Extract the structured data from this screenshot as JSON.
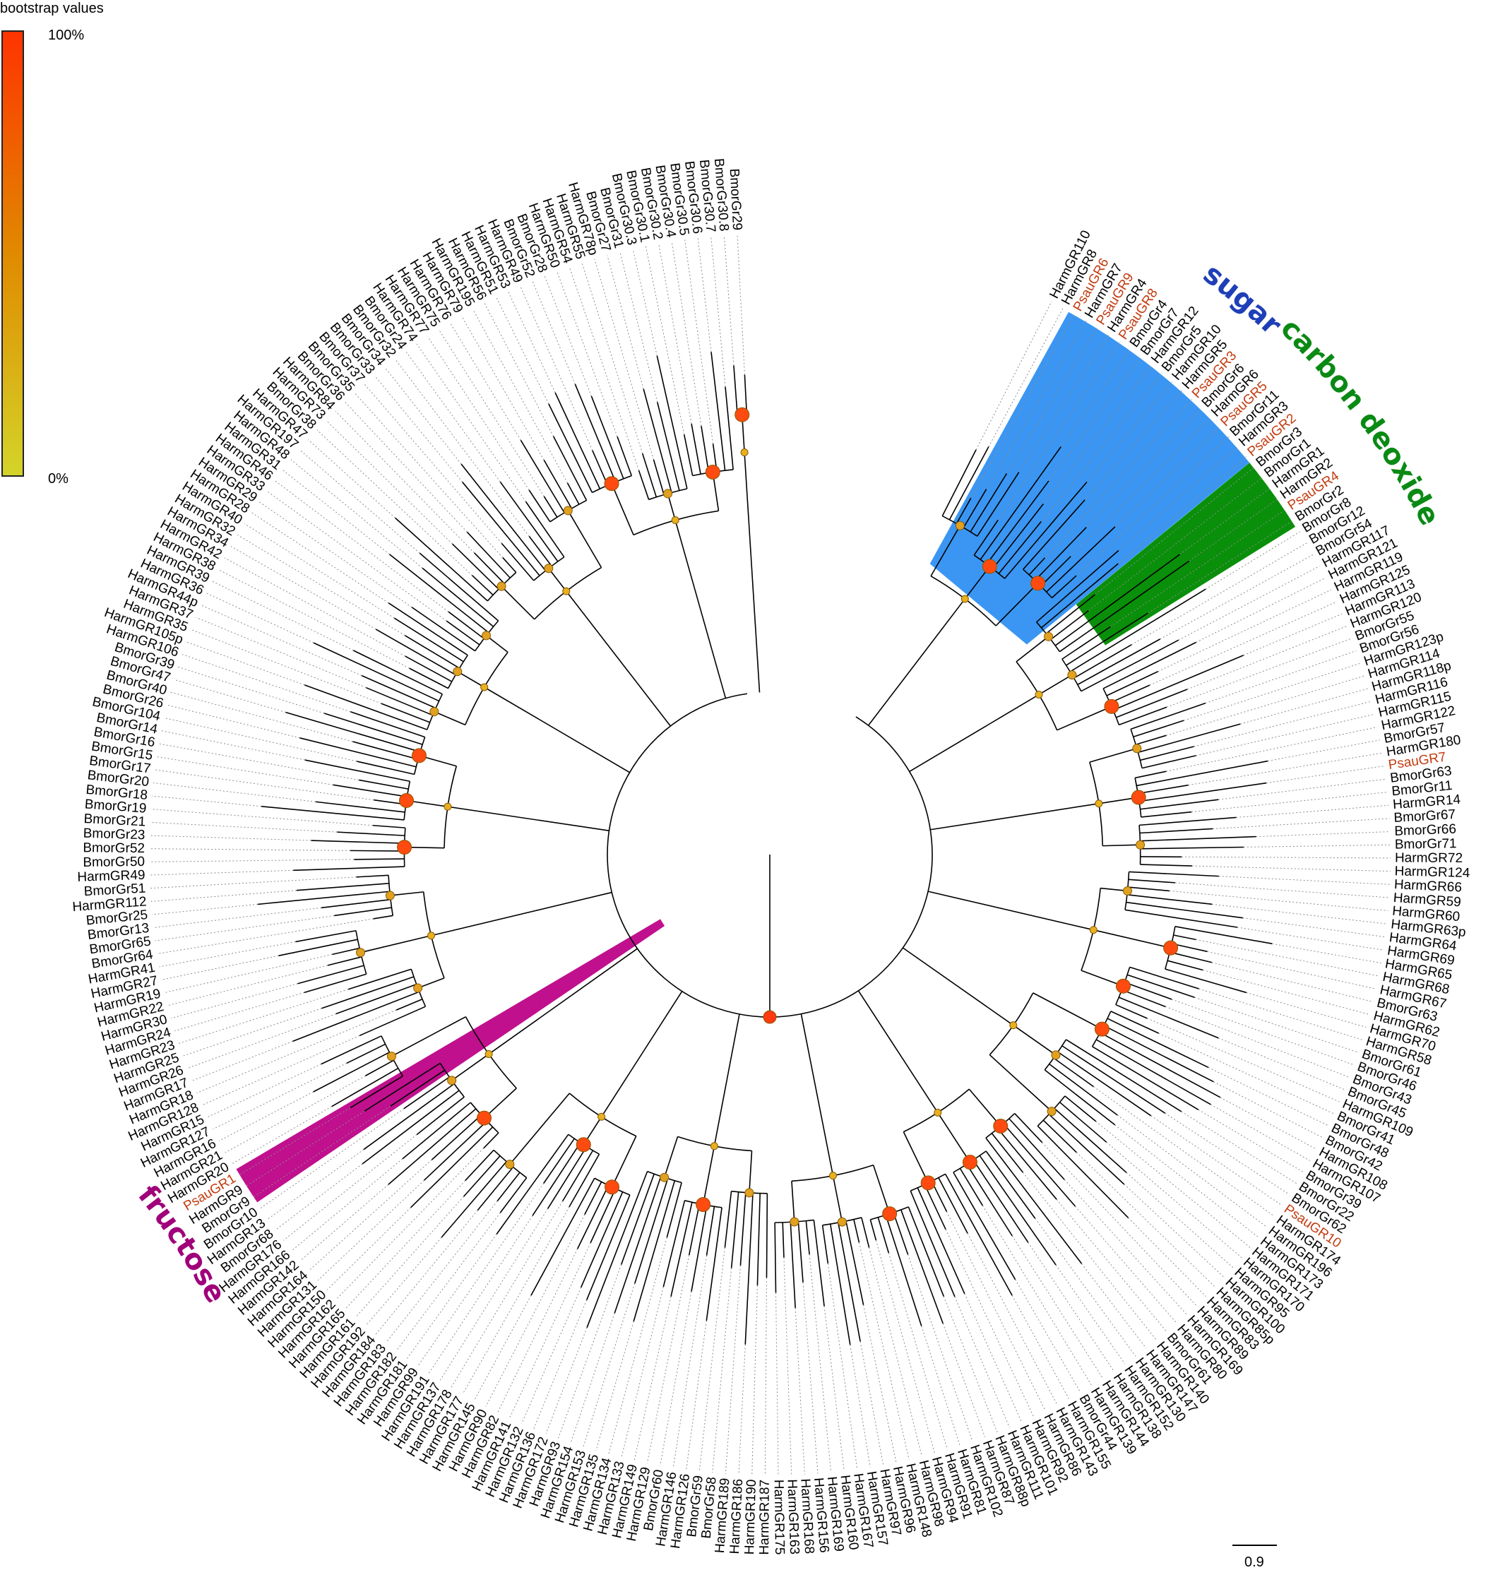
{
  "legend": {
    "title": "bootstrap values",
    "max_label": "100%",
    "min_label": "0%",
    "color_high": "#ff3300",
    "color_mid": "#e08a00",
    "color_low": "#d4d42a"
  },
  "scale_bar": {
    "label": "0.9"
  },
  "highlight_color": "#c23b0f",
  "clades": [
    {
      "label": "sugar",
      "color": "#1f3fb8",
      "fill": "#3a96f2"
    },
    {
      "label": "carbon deoxide",
      "color": "#0a8a14",
      "fill": "#0a8f0a"
    },
    {
      "label": "fructose",
      "color": "#a0007a",
      "fill": "#c0108e"
    }
  ],
  "leaves": [
    "HarmGR110",
    "HarmGR8",
    "PsauGR6",
    "HarmGR7",
    "PsauGR9",
    "HarmGR4",
    "PsauGR8",
    "BmorGr4",
    "BmorGr7",
    "HarmGR12",
    "BmorGr5",
    "HarmGR10",
    "HarmGR5",
    "PsauGR3",
    "BmorGr6",
    "HarmGR6",
    "PsauGR5",
    "BmorGr11",
    "HarmGR3",
    "PsauGR2",
    "BmorGr3",
    "BmorGr1",
    "HarmGR1",
    "HarmGR2",
    "PsauGR4",
    "BmorGr2",
    "BmorGr8",
    "BmorGr12",
    "BmorGr54",
    "HarmGR117",
    "HarmGR121",
    "HarmGR119",
    "HarmGR125",
    "HarmGR113",
    "HarmGR120",
    "BmorGr55",
    "BmorGr56",
    "HarmGR123p",
    "HarmGR114",
    "HarmGR118p",
    "HarmGR116",
    "HarmGR115",
    "HarmGR122",
    "BmorGr57",
    "HarmGR180",
    "PsauGR7",
    "BmorGr63",
    "BmorGr11",
    "HarmGR14",
    "BmorGr67",
    "BmorGr66",
    "BmorGr71",
    "HarmGR72",
    "HarmGR124",
    "HarmGR66",
    "HarmGR59",
    "HarmGR60",
    "HarmGR63p",
    "HarmGR64",
    "HarmGR69",
    "HarmGR65",
    "HarmGR68",
    "HarmGR67",
    "BmorGr63",
    "HarmGR62",
    "HarmGR70",
    "HarmGR58",
    "BmorGr61",
    "BmorGr46",
    "BmorGr43",
    "BmorGr45",
    "HarmGR109",
    "BmorGr41",
    "BmorGr48",
    "BmorGr42",
    "HarmGR108",
    "HarmGR107",
    "BmorGr39",
    "BmorGr22",
    "BmorGr62",
    "PsauGR10",
    "HarmGR174",
    "HarmGR196",
    "HarmGR173",
    "HarmGR171",
    "HarmGR170",
    "HarmGR95",
    "HarmGR100",
    "HarmGR85p",
    "HarmGR83",
    "HarmGR89",
    "HarmGR169",
    "HarmGR80",
    "BmorGr61",
    "HarmGR140",
    "HarmGR147",
    "HarmGR130",
    "HarmGR152",
    "HarmGR138",
    "HarmGR144",
    "HarmGR139",
    "BmorGr44",
    "HarmGR155",
    "HarmGR143",
    "HarmGR86",
    "HarmGR92",
    "HarmGR101",
    "HarmGR111",
    "HarmGR88p",
    "HarmGR87",
    "HarmGR102",
    "HarmGR81",
    "HarmGR91",
    "HarmGR94",
    "HarmGR98",
    "HarmGR148",
    "HarmGR96",
    "HarmGR97",
    "HarmGR157",
    "HarmGR167",
    "HarmGR160",
    "HarmGR169",
    "HarmGR156",
    "HarmGR168",
    "HarmGR163",
    "HarmGR175",
    "HarmGR187",
    "HarmGR190",
    "HarmGR186",
    "HarmGR189",
    "BmorGr58",
    "BmorGr59",
    "HarmGR126",
    "HarmGR146",
    "BmorGr60",
    "HarmGR129",
    "HarmGR149",
    "HarmGR133",
    "HarmGR134",
    "HarmGR135",
    "HarmGR153",
    "HarmGR154",
    "HarmGR93",
    "HarmGR172",
    "HarmGR136",
    "HarmGR132",
    "HarmGR141",
    "HarmGR82",
    "HarmGR90",
    "HarmGR145",
    "HarmGR177",
    "HarmGR178",
    "HarmGR137",
    "HarmGR191",
    "HarmGR99",
    "HarmGR181",
    "HarmGR182",
    "HarmGR183",
    "HarmGR184",
    "HarmGR192",
    "HarmGR161",
    "HarmGR165",
    "HarmGR162",
    "HarmGR150",
    "HarmGR131",
    "HarmGR164",
    "HarmGR142",
    "HarmGR166",
    "HarmGR176",
    "BmorGr68",
    "HarmGR13",
    "BmorGr10",
    "BmorGr9",
    "HarmGR9",
    "PsauGR1",
    "HarmGR20",
    "HarmGR21",
    "HarmGR16",
    "HarmGR127",
    "HarmGR15",
    "HarmGR128",
    "HarmGR18",
    "HarmGR17",
    "HarmGR26",
    "HarmGR25",
    "HarmGR23",
    "HarmGR24",
    "HarmGR30",
    "HarmGR22",
    "HarmGR19",
    "HarmGR27",
    "HarmGR41",
    "BmorGr64",
    "BmorGr65",
    "BmorGr13",
    "BmorGr25",
    "HarmGR112",
    "BmorGr51",
    "HarmGR49",
    "BmorGr50",
    "BmorGr52",
    "BmorGr23",
    "BmorGr21",
    "BmorGr19",
    "BmorGr18",
    "BmorGr20",
    "BmorGr17",
    "BmorGr15",
    "BmorGr16",
    "BmorGr14",
    "BmorGr104",
    "BmorGr26",
    "BmorGr40",
    "BmorGr47",
    "BmorGr39",
    "HarmGR106",
    "HarmGR105p",
    "HarmGR35",
    "HarmGR37",
    "HarmGR44p",
    "HarmGR36",
    "HarmGR39",
    "HarmGR38",
    "HarmGR42",
    "HarmGR34",
    "HarmGR32",
    "HarmGR40",
    "HarmGR28",
    "HarmGR29",
    "HarmGR33",
    "HarmGR46",
    "HarmGR31",
    "HarmGR48",
    "HarmGR197",
    "HarmGR47",
    "BmorGr38",
    "HarmGR73",
    "HarmGR84",
    "BmorGr36",
    "BmorGr35",
    "BmorGr37",
    "BmorGr33",
    "BmorGr34",
    "BmorGr32",
    "BmorGr24",
    "HarmGR74",
    "HarmGR77",
    "HarmGR75",
    "HarmGR76",
    "HarmGR79",
    "HarmGR195",
    "HarmGR56",
    "HarmGR51",
    "HarmGR53",
    "HarmGR49",
    "BmorGr52",
    "BmorGr28",
    "HarmGR50",
    "HarmGR54",
    "HarmGR55",
    "HarmGR78p",
    "BmorGr27",
    "BmorGr31",
    "BmorGr30.3",
    "BmorGr30.1",
    "BmorGr30.2",
    "BmorGr30.4",
    "BmorGr30.5",
    "BmorGr30.6",
    "BmorGr30.7",
    "BmorGr30.8",
    "BmorGr29"
  ]
}
